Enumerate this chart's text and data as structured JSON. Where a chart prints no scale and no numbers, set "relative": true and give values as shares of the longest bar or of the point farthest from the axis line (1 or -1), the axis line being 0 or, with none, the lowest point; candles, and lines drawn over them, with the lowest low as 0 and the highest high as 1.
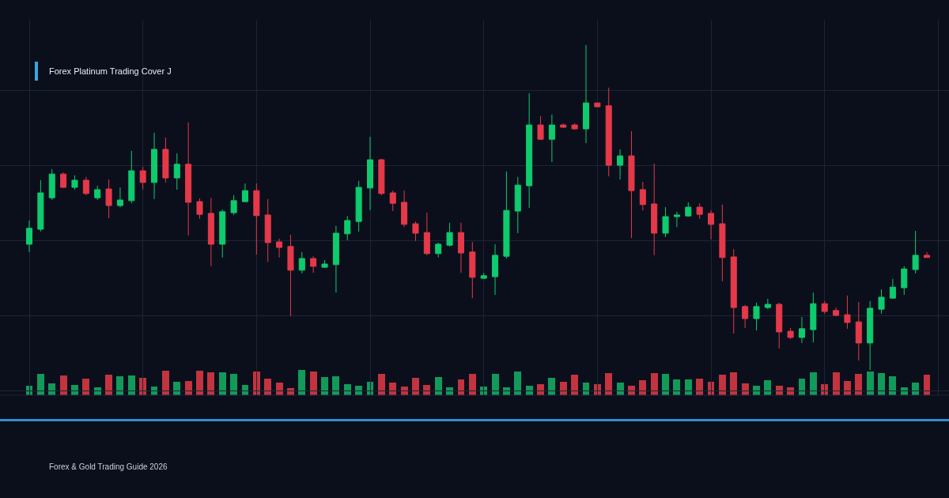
{
  "chart_data": [
    {
      "type": "candlestick",
      "relative": true,
      "grid": true,
      "categories": [
        null,
        null,
        null,
        null,
        null,
        null,
        null,
        null,
        null,
        null,
        null,
        null,
        null,
        null,
        null,
        null,
        null,
        null,
        null,
        null,
        null,
        null,
        null,
        null,
        null,
        null,
        null,
        null,
        null,
        null,
        null,
        null,
        null,
        null,
        null,
        null,
        null,
        null,
        null,
        null,
        null,
        null,
        null,
        null,
        null,
        null,
        null,
        null,
        null,
        null,
        null,
        null,
        null,
        null,
        null,
        null,
        null,
        null,
        null,
        null,
        null,
        null,
        null,
        null,
        null,
        null,
        null,
        null,
        null,
        null,
        null,
        null,
        null,
        null,
        null,
        null,
        null,
        null,
        null,
        null
      ],
      "ohlc": [
        [
          0.387,
          0.46,
          0.363,
          0.436
        ],
        [
          0.433,
          0.584,
          0.426,
          0.545
        ],
        [
          0.53,
          0.618,
          0.523,
          0.603
        ],
        [
          0.603,
          0.608,
          0.56,
          0.562
        ],
        [
          0.562,
          0.599,
          0.555,
          0.584
        ],
        [
          0.584,
          0.594,
          0.538,
          0.543
        ],
        [
          0.53,
          0.567,
          0.523,
          0.555
        ],
        [
          0.557,
          0.586,
          0.467,
          0.506
        ],
        [
          0.506,
          0.562,
          0.501,
          0.523
        ],
        [
          0.521,
          0.674,
          0.513,
          0.613
        ],
        [
          0.613,
          0.625,
          0.555,
          0.577
        ],
        [
          0.577,
          0.73,
          0.526,
          0.679
        ],
        [
          0.679,
          0.715,
          0.577,
          0.591
        ],
        [
          0.591,
          0.667,
          0.555,
          0.633
        ],
        [
          0.633,
          0.762,
          0.414,
          0.516
        ],
        [
          0.518,
          0.528,
          0.465,
          0.479
        ],
        [
          0.482,
          0.53,
          0.319,
          0.387
        ],
        [
          0.387,
          0.494,
          0.346,
          0.487
        ],
        [
          0.484,
          0.538,
          0.477,
          0.521
        ],
        [
          0.518,
          0.574,
          0.516,
          0.552
        ],
        [
          0.552,
          0.574,
          0.355,
          0.475
        ],
        [
          0.477,
          0.526,
          0.333,
          0.392
        ],
        [
          0.394,
          0.404,
          0.346,
          0.377
        ],
        [
          0.38,
          0.416,
          0.166,
          0.307
        ],
        [
          0.307,
          0.363,
          0.297,
          0.343
        ],
        [
          0.343,
          0.35,
          0.299,
          0.319
        ],
        [
          0.316,
          0.338,
          0.314,
          0.326
        ],
        [
          0.324,
          0.443,
          0.238,
          0.421
        ],
        [
          0.419,
          0.474,
          0.399,
          0.46
        ],
        [
          0.457,
          0.582,
          0.426,
          0.562
        ],
        [
          0.56,
          0.718,
          0.492,
          0.647
        ],
        [
          0.647,
          0.65,
          0.538,
          0.543
        ],
        [
          0.545,
          0.552,
          0.489,
          0.513
        ],
        [
          0.516,
          0.552,
          0.44,
          0.448
        ],
        [
          0.45,
          0.457,
          0.397,
          0.421
        ],
        [
          0.423,
          0.484,
          0.353,
          0.358
        ],
        [
          0.358,
          0.392,
          0.346,
          0.387
        ],
        [
          0.384,
          0.453,
          0.38,
          0.423
        ],
        [
          0.423,
          0.453,
          0.299,
          0.36
        ],
        [
          0.363,
          0.394,
          0.221,
          0.285
        ],
        [
          0.282,
          0.299,
          0.28,
          0.29
        ],
        [
          0.287,
          0.387,
          0.231,
          0.353
        ],
        [
          0.35,
          0.611,
          0.343,
          0.491
        ],
        [
          0.489,
          0.594,
          0.421,
          0.569
        ],
        [
          0.567,
          0.852,
          0.499,
          0.754
        ],
        [
          0.754,
          0.781,
          0.708,
          0.71
        ],
        [
          0.71,
          0.786,
          0.64,
          0.754
        ],
        [
          0.754,
          0.759,
          0.745,
          0.747
        ],
        [
          0.754,
          0.759,
          0.74,
          0.742
        ],
        [
          0.742,
          1,
          0.698,
          0.822
        ],
        [
          0.822,
          0.822,
          0.81,
          0.81
        ],
        [
          0.813,
          0.869,
          0.596,
          0.63
        ],
        [
          0.63,
          0.679,
          0.586,
          0.659
        ],
        [
          0.659,
          0.735,
          0.406,
          0.552
        ],
        [
          0.555,
          0.579,
          0.491,
          0.509
        ],
        [
          0.511,
          0.635,
          0.353,
          0.421
        ],
        [
          0.421,
          0.501,
          0.409,
          0.472
        ],
        [
          0.472,
          0.487,
          0.44,
          0.477
        ],
        [
          0.474,
          0.516,
          0.472,
          0.501
        ],
        [
          0.501,
          0.513,
          0.465,
          0.479
        ],
        [
          0.482,
          0.491,
          0.402,
          0.448
        ],
        [
          0.45,
          0.509,
          0.273,
          0.346
        ],
        [
          0.348,
          0.372,
          0.112,
          0.192
        ],
        [
          0.195,
          0.2,
          0.129,
          0.158
        ],
        [
          0.158,
          0.207,
          0.122,
          0.195
        ],
        [
          0.192,
          0.219,
          0.187,
          0.202
        ],
        [
          0.202,
          0.207,
          0.066,
          0.117
        ],
        [
          0.119,
          0.129,
          0.095,
          0.1
        ],
        [
          0.1,
          0.163,
          0.083,
          0.127
        ],
        [
          0.124,
          0.238,
          0.085,
          0.204
        ],
        [
          0.204,
          0.212,
          0.173,
          0.18
        ],
        [
          0.183,
          0.192,
          0.165,
          0.168
        ],
        [
          0.17,
          0.229,
          0.127,
          0.146
        ],
        [
          0.148,
          0.209,
          0.029,
          0.083
        ],
        [
          0.083,
          0.212,
          0,
          0.19
        ],
        [
          0.187,
          0.248,
          0.173,
          0.224
        ],
        [
          0.221,
          0.28,
          0.219,
          0.255
        ],
        [
          0.253,
          0.319,
          0.231,
          0.311
        ],
        [
          0.309,
          0.428,
          0.297,
          0.353
        ],
        [
          0.353,
          0.363,
          0.346,
          0.346
        ]
      ],
      "annotations": [
        "Forex Platinum Trading Cover J",
        "Forex & Gold Trading Guide 2026"
      ]
    },
    {
      "type": "bar",
      "relative": true,
      "categories": [
        null,
        null,
        null,
        null,
        null,
        null,
        null,
        null,
        null,
        null,
        null,
        null,
        null,
        null,
        null,
        null,
        null,
        null,
        null,
        null,
        null,
        null,
        null,
        null,
        null,
        null,
        null,
        null,
        null,
        null,
        null,
        null,
        null,
        null,
        null,
        null,
        null,
        null,
        null,
        null,
        null,
        null,
        null,
        null,
        null,
        null,
        null,
        null,
        null,
        null,
        null,
        null,
        null,
        null,
        null,
        null,
        null,
        null,
        null,
        null,
        null,
        null,
        null,
        null,
        null,
        null,
        null,
        null,
        null,
        null,
        null,
        null,
        null,
        null,
        null,
        null,
        null,
        null,
        null,
        null
      ],
      "values": [
        0.36,
        0.83,
        0.47,
        0.78,
        0.42,
        0.66,
        0.31,
        0.81,
        0.75,
        0.78,
        0.69,
        0.33,
        0.97,
        0.52,
        0.56,
        0.97,
        0.91,
        0.91,
        0.83,
        0.41,
        0.94,
        0.66,
        0.5,
        0.28,
        1,
        0.94,
        0.72,
        0.75,
        0.44,
        0.38,
        0.53,
        0.84,
        0.5,
        0.34,
        0.69,
        0.41,
        0.72,
        0.31,
        0.63,
        0.84,
        0.34,
        0.84,
        0.31,
        0.94,
        0.38,
        0.44,
        0.69,
        0.53,
        0.81,
        0.5,
        0.44,
        0.88,
        0.5,
        0.38,
        0.59,
        0.88,
        0.84,
        0.63,
        0.63,
        0.66,
        0.53,
        0.81,
        0.91,
        0.47,
        0.38,
        0.59,
        0.38,
        0.31,
        0.66,
        0.91,
        0.44,
        0.91,
        0.56,
        0.84,
        0.94,
        0.88,
        0.75,
        0.31,
        0.5,
        0.81
      ],
      "colors": [
        "#129a5a",
        "#129a5a",
        "#129a5a",
        "#c2343f",
        "#129a5a",
        "#c2343f",
        "#129a5a",
        "#c2343f",
        "#129a5a",
        "#129a5a",
        "#c2343f",
        "#129a5a",
        "#c2343f",
        "#129a5a",
        "#c2343f",
        "#c2343f",
        "#c2343f",
        "#129a5a",
        "#129a5a",
        "#129a5a",
        "#c2343f",
        "#c2343f",
        "#c2343f",
        "#c2343f",
        "#129a5a",
        "#c2343f",
        "#129a5a",
        "#129a5a",
        "#129a5a",
        "#129a5a",
        "#129a5a",
        "#c2343f",
        "#c2343f",
        "#c2343f",
        "#c2343f",
        "#c2343f",
        "#129a5a",
        "#129a5a",
        "#c2343f",
        "#c2343f",
        "#129a5a",
        "#129a5a",
        "#129a5a",
        "#129a5a",
        "#129a5a",
        "#c2343f",
        "#129a5a",
        "#c2343f",
        "#c2343f",
        "#129a5a",
        "#c2343f",
        "#c2343f",
        "#129a5a",
        "#c2343f",
        "#c2343f",
        "#c2343f",
        "#129a5a",
        "#129a5a",
        "#129a5a",
        "#c2343f",
        "#c2343f",
        "#c2343f",
        "#c2343f",
        "#c2343f",
        "#129a5a",
        "#129a5a",
        "#c2343f",
        "#c2343f",
        "#129a5a",
        "#129a5a",
        "#c2343f",
        "#c2343f",
        "#c2343f",
        "#c2343f",
        "#129a5a",
        "#129a5a",
        "#129a5a",
        "#129a5a",
        "#129a5a",
        "#c2343f"
      ]
    }
  ]
}
